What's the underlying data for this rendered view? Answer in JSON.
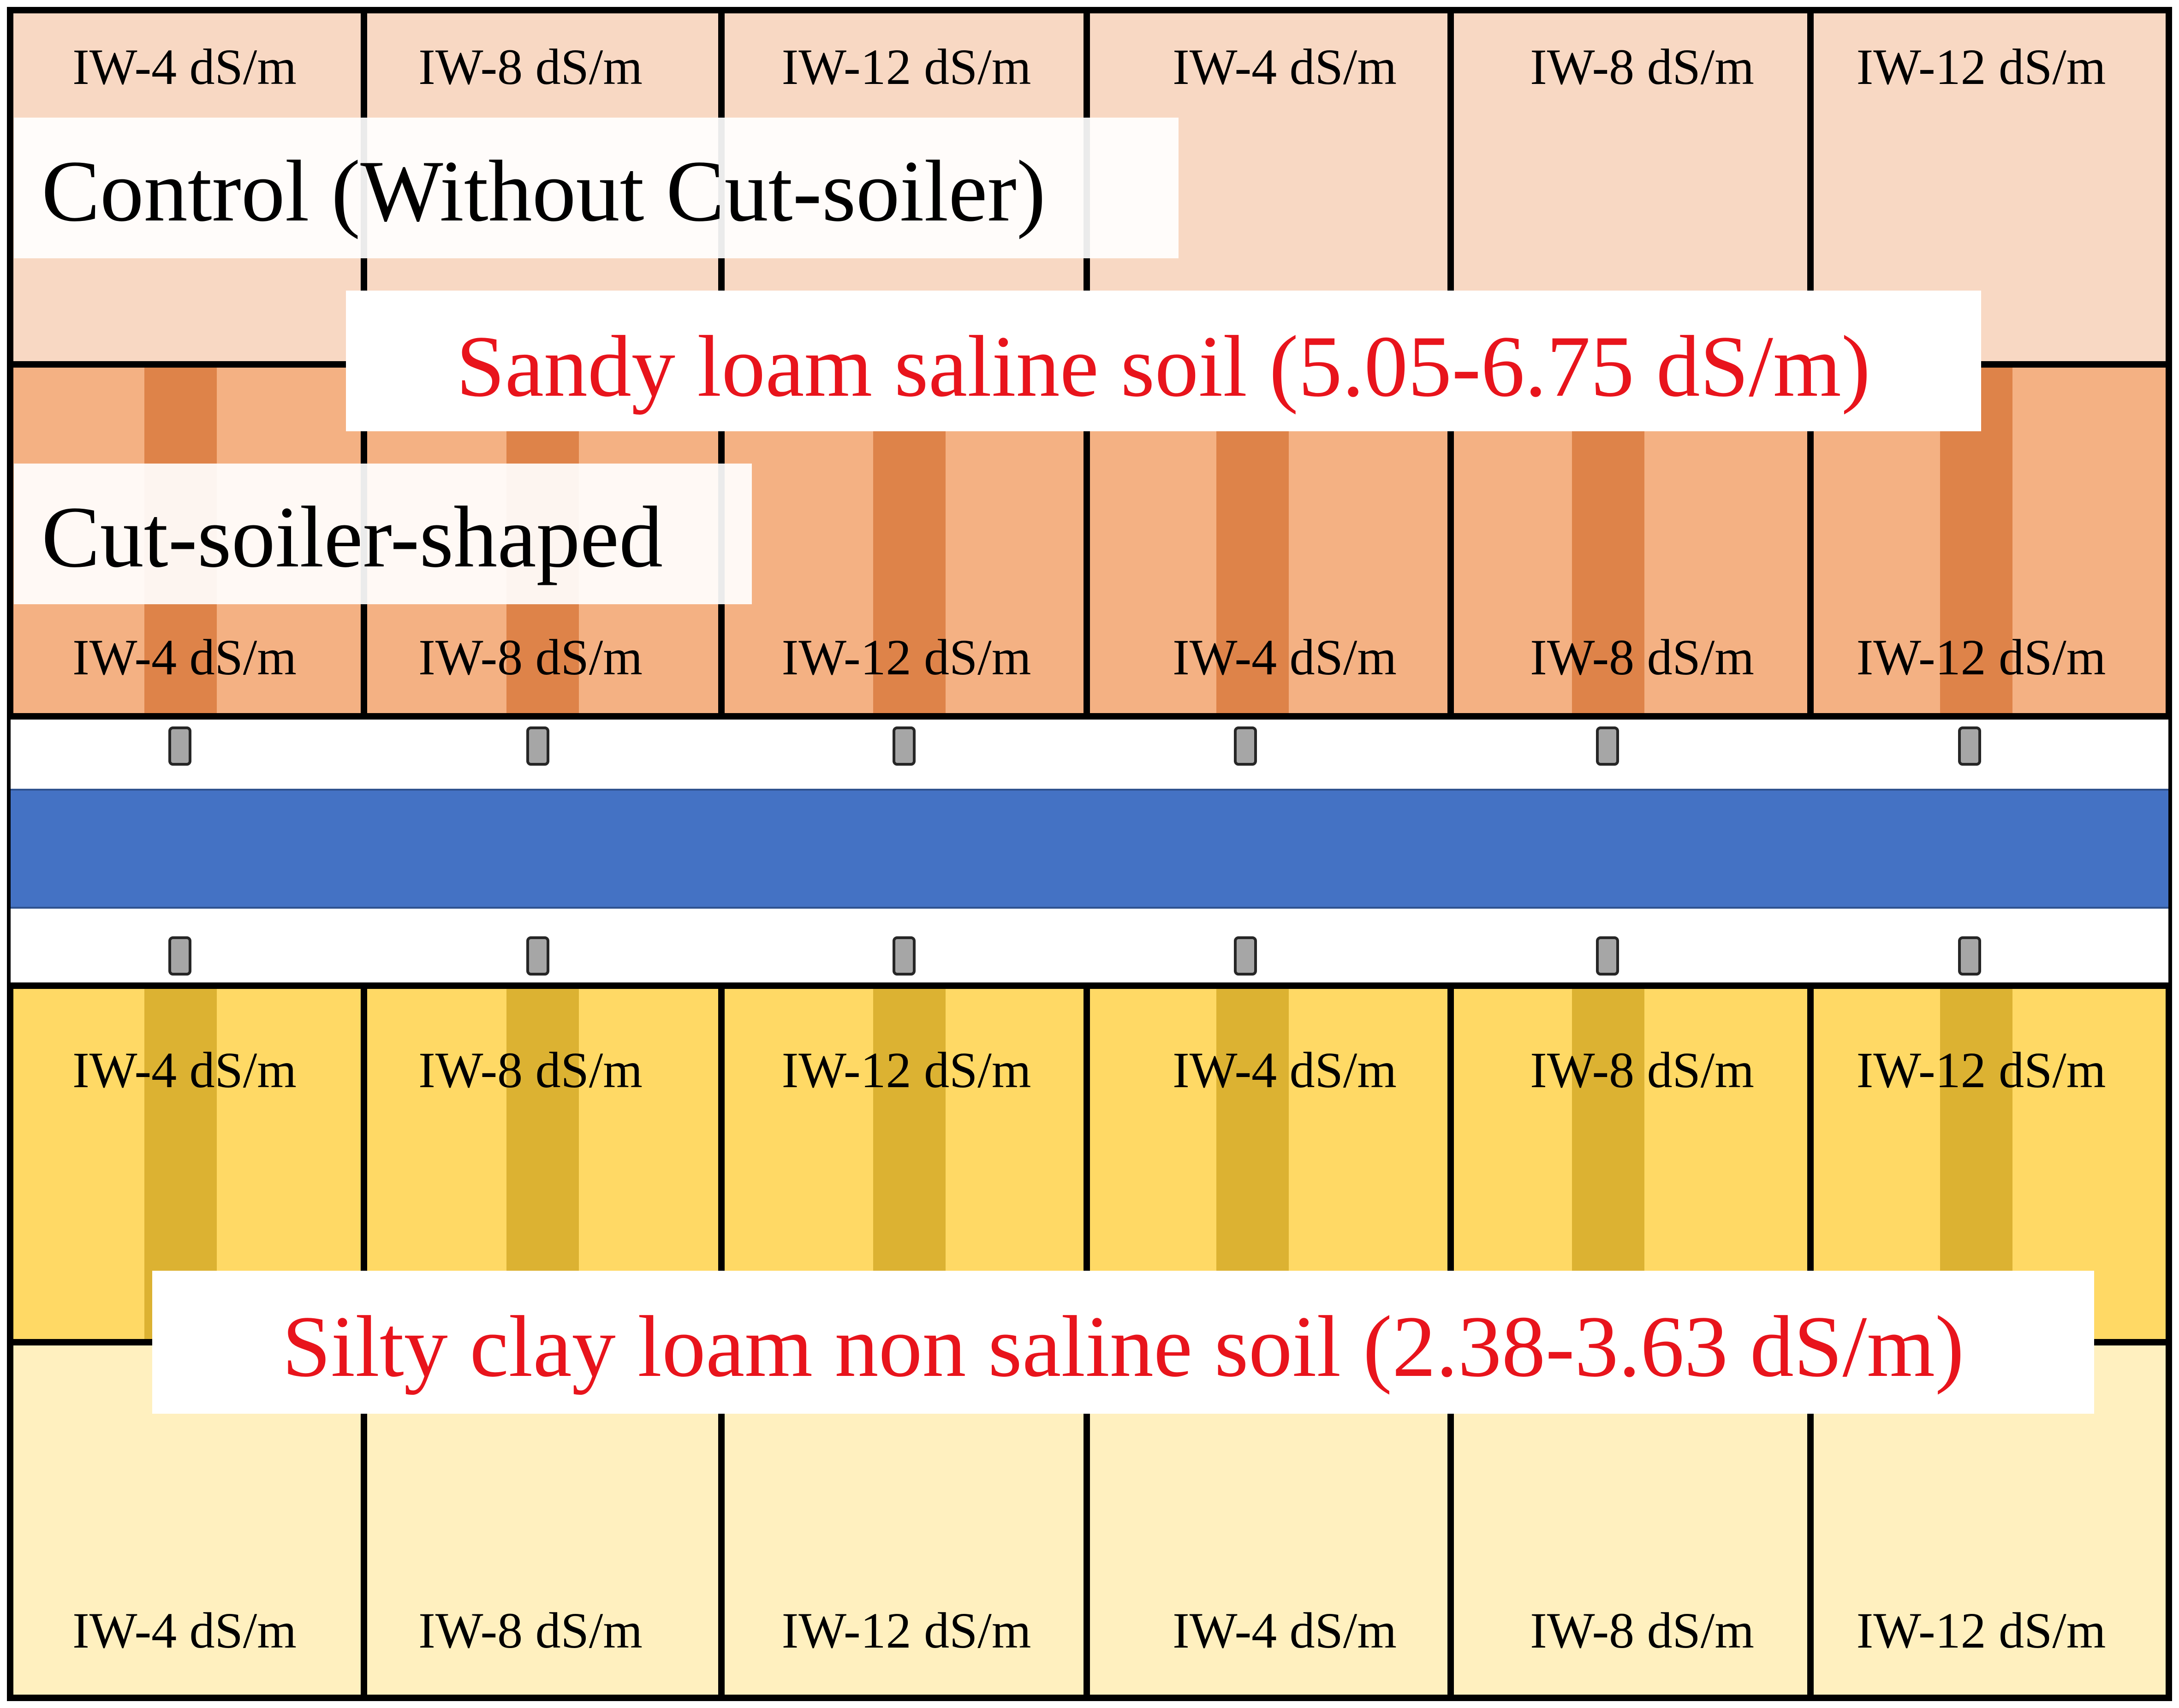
{
  "colors": {
    "sandy_control": "#f8d8c3",
    "sandy_shaped": "#f4b183",
    "sandy_furrow": "#de8349",
    "silty_shaped": "#ffd965",
    "silty_furrow": "#dcb232",
    "silty_control": "#fff0bf",
    "channel": "#4472c4",
    "grid_line": "#000000",
    "inlet": "#a6a6a6",
    "soil_label": "#e8141c",
    "label_background": "#ffffff"
  },
  "treatments": {
    "control": "Control (Without Cut-soiler)",
    "shaped": "Cut-soiler-shaped"
  },
  "soils": {
    "sandy": "Sandy loam saline soil (5.05-6.75 dS/m)",
    "silty": "Silty clay loam non saline soil (2.38-3.63 dS/m)"
  },
  "plots": {
    "sandy_control": [
      "IW-4 dS/m",
      "IW-8 dS/m",
      "IW-12 dS/m",
      "IW-4 dS/m",
      "IW-8 dS/m",
      "IW-12 dS/m"
    ],
    "sandy_shaped": [
      "IW-4 dS/m",
      "IW-8 dS/m",
      "IW-12 dS/m",
      "IW-4 dS/m",
      "IW-8 dS/m",
      "IW-12 dS/m"
    ],
    "silty_shaped": [
      "IW-4 dS/m",
      "IW-8 dS/m",
      "IW-12 dS/m",
      "IW-4 dS/m",
      "IW-8 dS/m",
      "IW-12 dS/m"
    ],
    "silty_control": [
      "IW-4 dS/m",
      "IW-8 dS/m",
      "IW-12 dS/m",
      "IW-4 dS/m",
      "IW-8 dS/m",
      "IW-12 dS/m"
    ]
  }
}
